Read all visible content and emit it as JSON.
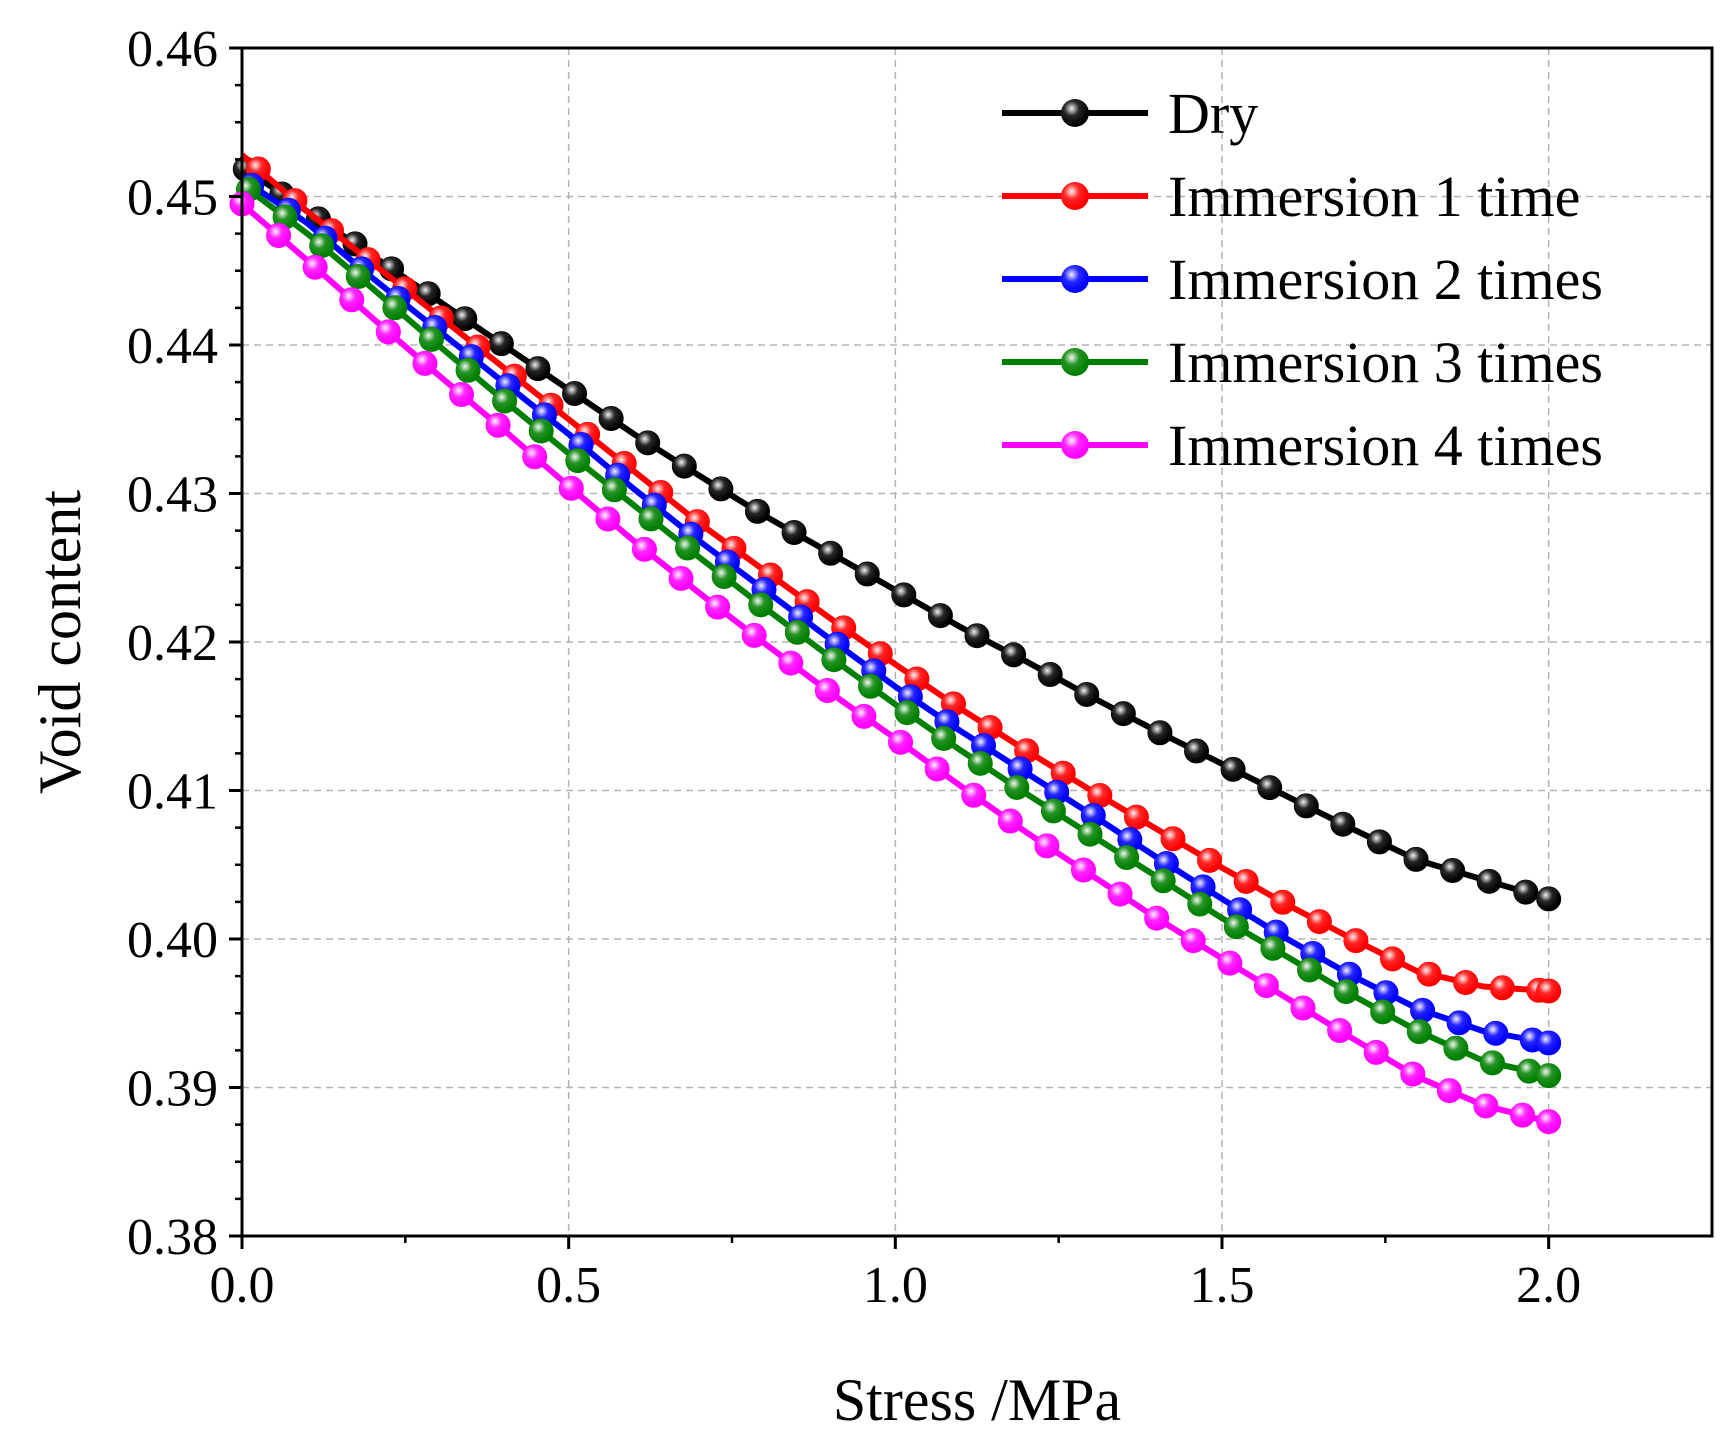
{
  "chart_data": {
    "type": "line",
    "title": "",
    "xlabel": "Stress /MPa",
    "ylabel": "Void content",
    "xlim": [
      0.0,
      2.25
    ],
    "ylim": [
      0.38,
      0.46
    ],
    "xticks": [
      "0.0",
      "0.5",
      "1.0",
      "1.5",
      "2.0"
    ],
    "yticks": [
      "0.38",
      "0.39",
      "0.40",
      "0.41",
      "0.42",
      "0.43",
      "0.44",
      "0.45",
      "0.46"
    ],
    "grid": true,
    "legend_position": "top-right",
    "markers": "circle",
    "series": [
      {
        "name": "Dry",
        "color": "#000000",
        "x": [
          0.0,
          0.1,
          0.2,
          0.3,
          0.4,
          0.5,
          0.6,
          0.7,
          0.8,
          0.9,
          1.0,
          1.1,
          1.2,
          1.3,
          1.4,
          1.5,
          1.6,
          1.7,
          1.8,
          1.9,
          2.0
        ],
        "values": [
          0.452,
          0.449,
          0.446,
          0.443,
          0.44,
          0.437,
          0.434,
          0.4312,
          0.4285,
          0.426,
          0.4235,
          0.421,
          0.4187,
          0.4163,
          0.414,
          0.4118,
          0.4096,
          0.4074,
          0.4053,
          0.404,
          0.4027
        ]
      },
      {
        "name": "Immersion 1 time",
        "color": "#ff0000",
        "x": [
          0.0,
          0.1,
          0.2,
          0.3,
          0.4,
          0.5,
          0.6,
          0.7,
          0.8,
          0.9,
          1.0,
          1.1,
          1.2,
          1.3,
          1.4,
          1.5,
          1.6,
          1.7,
          1.8,
          1.9,
          2.0
        ],
        "values": [
          0.4528,
          0.449,
          0.4455,
          0.442,
          0.4385,
          0.435,
          0.4315,
          0.428,
          0.4248,
          0.4216,
          0.4185,
          0.4155,
          0.4127,
          0.41,
          0.4074,
          0.4048,
          0.4023,
          0.4,
          0.3978,
          0.3968,
          0.3965
        ]
      },
      {
        "name": "Immersion 2 times",
        "color": "#0000ff",
        "x": [
          0.0,
          0.1,
          0.2,
          0.3,
          0.4,
          0.5,
          0.6,
          0.7,
          0.8,
          0.9,
          1.0,
          1.1,
          1.2,
          1.3,
          1.4,
          1.5,
          1.6,
          1.7,
          1.8,
          1.9,
          2.0
        ],
        "values": [
          0.4512,
          0.4482,
          0.4445,
          0.441,
          0.4375,
          0.434,
          0.4303,
          0.4268,
          0.4235,
          0.4202,
          0.417,
          0.414,
          0.4112,
          0.4084,
          0.4055,
          0.4027,
          0.4,
          0.3975,
          0.3953,
          0.3938,
          0.393
        ]
      },
      {
        "name": "Immersion 3 times",
        "color": "#008000",
        "x": [
          0.0,
          0.1,
          0.2,
          0.3,
          0.4,
          0.5,
          0.6,
          0.7,
          0.8,
          0.9,
          1.0,
          1.1,
          1.2,
          1.3,
          1.4,
          1.5,
          1.6,
          1.7,
          1.8,
          1.9,
          2.0
        ],
        "values": [
          0.4508,
          0.4475,
          0.4438,
          0.44,
          0.4363,
          0.4327,
          0.4292,
          0.4257,
          0.4223,
          0.419,
          0.4158,
          0.4127,
          0.4098,
          0.407,
          0.4042,
          0.4014,
          0.3988,
          0.3962,
          0.3938,
          0.3918,
          0.3908
        ]
      },
      {
        "name": "Immersion 4 times",
        "color": "#ff00ff",
        "x": [
          0.0,
          0.1,
          0.2,
          0.3,
          0.4,
          0.5,
          0.6,
          0.7,
          0.8,
          0.9,
          1.0,
          1.1,
          1.2,
          1.3,
          1.4,
          1.5,
          1.6,
          1.7,
          1.8,
          1.9,
          2.0
        ],
        "values": [
          0.4495,
          0.4457,
          0.4418,
          0.438,
          0.4343,
          0.4305,
          0.4268,
          0.4233,
          0.4199,
          0.4166,
          0.4135,
          0.4103,
          0.4072,
          0.4043,
          0.4014,
          0.3987,
          0.396,
          0.3933,
          0.3907,
          0.3888,
          0.3877
        ]
      }
    ]
  }
}
